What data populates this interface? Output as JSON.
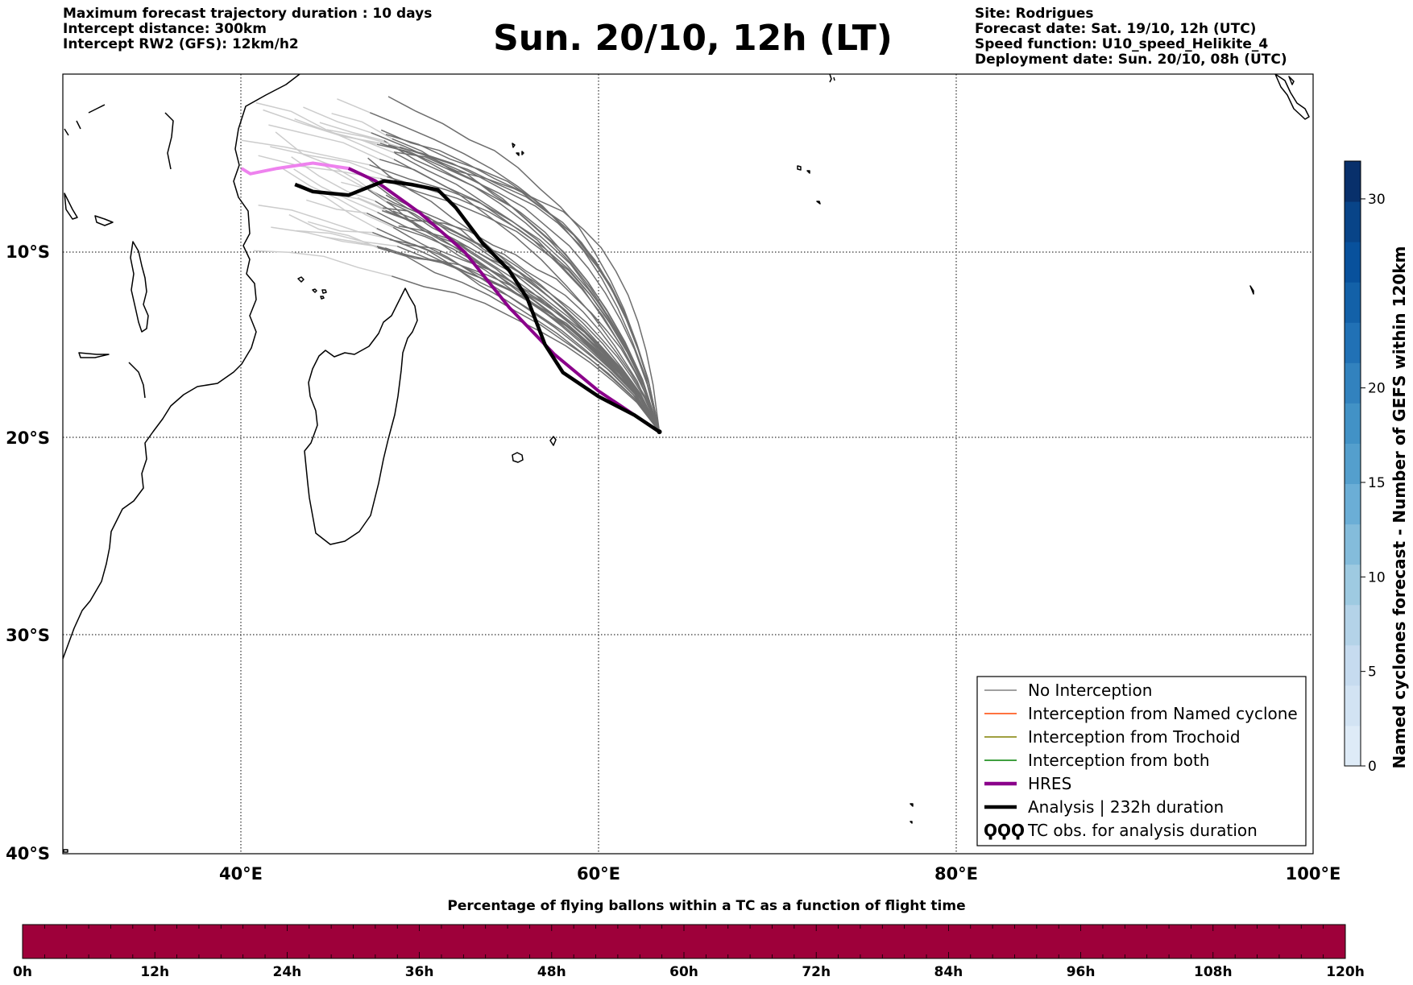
{
  "header": {
    "left_lines": [
      "Maximum forecast trajectory duration : 10 days",
      "Intercept distance: 300km",
      "Intercept RW2 (GFS):  12km/h2"
    ],
    "title": "Sun. 20/10, 12h (LT)",
    "right_lines": [
      "Site: Rodrigues",
      "Forecast date: Sat. 19/10, 12h (UTC)",
      "Speed function: U10_speed_Helikite_4",
      "Deployment date: Sun. 20/10, 08h (UTC)"
    ]
  },
  "map": {
    "region": "South-West Indian Ocean",
    "lon_range": [
      30,
      100
    ],
    "lat_range": [
      -40,
      0
    ],
    "gridlines": true,
    "lon_ticks": [
      "40°E",
      "60°E",
      "80°E",
      "100°E"
    ],
    "lat_ticks": [
      "10°S",
      "20°S",
      "30°S",
      "40°S"
    ],
    "site_lon": 63.4,
    "site_lat": -19.7,
    "hres_track": [
      [
        63.4,
        -19.7
      ],
      [
        60,
        -17.5
      ],
      [
        57.5,
        -15.5
      ],
      [
        55,
        -13
      ],
      [
        52.5,
        -10
      ],
      [
        50,
        -7.8
      ],
      [
        47.5,
        -6
      ],
      [
        46,
        -5.3
      ],
      [
        44,
        -5
      ],
      [
        42,
        -5.3
      ],
      [
        40.5,
        -5.6
      ],
      [
        40,
        -5.3
      ]
    ],
    "analysis_track": [
      [
        63.4,
        -19.7
      ],
      [
        62,
        -18.8
      ],
      [
        60,
        -17.8
      ],
      [
        58,
        -16.5
      ],
      [
        57,
        -15
      ],
      [
        56,
        -12.5
      ],
      [
        55,
        -11
      ],
      [
        53.5,
        -9.5
      ],
      [
        52,
        -7.5
      ],
      [
        51,
        -6.5
      ],
      [
        49.5,
        -6.2
      ],
      [
        48,
        -6
      ],
      [
        47,
        -6.4
      ],
      [
        46,
        -6.8
      ],
      [
        45,
        -6.7
      ],
      [
        44,
        -6.6
      ],
      [
        43,
        -6.2
      ]
    ],
    "colors": {
      "ensemble": "#6e6e6e",
      "ensemble_light": "#cccccc",
      "hres": "#8b008b",
      "hres_light": "#ee82ee",
      "analysis": "#000000",
      "coast": "#000000"
    }
  },
  "legend": {
    "items": [
      {
        "label": "No Interception",
        "color": "#808080",
        "style": "thin"
      },
      {
        "label": "Interception from Named cyclone",
        "color": "#ff4500",
        "style": "thin"
      },
      {
        "label": "Interception from Trochoid",
        "color": "#808000",
        "style": "thin"
      },
      {
        "label": "Interception from both",
        "color": "#008000",
        "style": "thin"
      },
      {
        "label": "HRES",
        "color": "#8b008b",
        "style": "thick"
      },
      {
        "label": "Analysis | 232h duration",
        "color": "#000000",
        "style": "thick"
      },
      {
        "label": "TC obs. for analysis duration",
        "color": "#000000",
        "style": "symbol",
        "symbol": "ϘϘϘ"
      }
    ]
  },
  "colorbar_right": {
    "label": "Named cyclones forecast - Number of GEFS within 120km",
    "ticks": [
      "0",
      "5",
      "10",
      "15",
      "20",
      "30"
    ],
    "colors": [
      "#deebf7",
      "#d2e3f3",
      "#c6dbef",
      "#b4d3e8",
      "#9ecae1",
      "#84bcdb",
      "#6baed6",
      "#549fcd",
      "#4292c6",
      "#3282be",
      "#2171b5",
      "#1361a8",
      "#08519c",
      "#084488",
      "#08306b"
    ]
  },
  "colorbar_bottom": {
    "title": "Percentage of flying ballons within a TC as a function of flight time",
    "ticks": [
      "0h",
      "12h",
      "24h",
      "36h",
      "48h",
      "60h",
      "72h",
      "84h",
      "96h",
      "108h",
      "120h"
    ],
    "fill_color": "#9e003a"
  }
}
